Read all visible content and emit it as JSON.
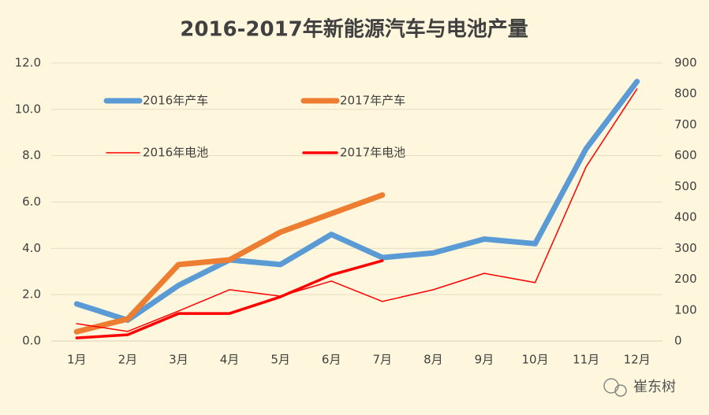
{
  "chart_data": {
    "type": "line",
    "title": "2016-2017年新能源汽车与电池产量",
    "categories": [
      "1月",
      "2月",
      "3月",
      "4月",
      "5月",
      "6月",
      "7月",
      "8月",
      "9月",
      "10月",
      "11月",
      "12月"
    ],
    "ylim": [
      0,
      12
    ],
    "yticks": [
      {
        "value": 0,
        "label": "0.0"
      },
      {
        "value": 2,
        "label": "2.0"
      },
      {
        "value": 4,
        "label": "4.0"
      },
      {
        "value": 6,
        "label": "6.0"
      },
      {
        "value": 8,
        "label": "8.0"
      },
      {
        "value": 10,
        "label": "10.0"
      },
      {
        "value": 12,
        "label": "12.0"
      }
    ],
    "y2lim": [
      0,
      900
    ],
    "y2ticks": [
      0,
      100,
      200,
      300,
      400,
      500,
      600,
      700,
      800,
      900
    ],
    "grid": true,
    "series": [
      {
        "name": "2016年产车",
        "color": "#5b9bd5",
        "width": 7,
        "values": [
          1.6,
          0.9,
          2.4,
          3.5,
          3.3,
          4.6,
          3.6,
          3.8,
          4.4,
          4.2,
          8.3,
          11.2
        ]
      },
      {
        "name": "2017年产车",
        "color": "#ed7d31",
        "width": 7,
        "values": [
          0.4,
          0.95,
          3.3,
          3.5,
          4.7,
          5.5,
          6.3,
          null,
          null,
          null,
          null,
          null
        ]
      },
      {
        "name": "2016年电池",
        "color": "#ff0000",
        "width": 1.5,
        "axis": "y2",
        "values": [
          56,
          31,
          97,
          166,
          145,
          194,
          128,
          166,
          219,
          189,
          564,
          816
        ]
      },
      {
        "name": "2017年电池",
        "color": "#ff0000",
        "width": 3.5,
        "axis": "y2",
        "values": [
          10,
          20,
          89,
          89,
          143,
          214,
          260,
          null,
          null,
          null,
          null,
          null
        ]
      }
    ],
    "watermark": "崔东树"
  }
}
